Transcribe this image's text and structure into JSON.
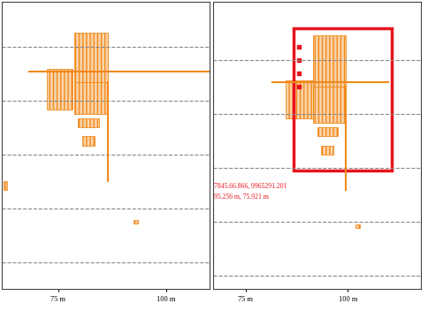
{
  "chart_data": [
    {
      "type": "echogram",
      "xlim": [
        62,
        110
      ],
      "ylim": [
        32,
        0
      ],
      "xticks": [
        {
          "value": 75,
          "label": "75 m"
        },
        {
          "value": 100,
          "label": "100 m"
        }
      ],
      "yticks": [
        5,
        11,
        17,
        23,
        29
      ],
      "grid": true,
      "line_style": "dashed",
      "tick_labels": "x",
      "color": "#f08a1c",
      "echoes": [
        {
          "x": [
            72.4,
            78.3
          ],
          "y": [
            7.5,
            12
          ]
        },
        {
          "x": [
            78.7,
            86.6
          ],
          "y": [
            3.5,
            9
          ]
        },
        {
          "x": [
            78.7,
            86.6
          ],
          "y": [
            9,
            12.5
          ]
        },
        {
          "x": [
            79.5,
            84.5
          ],
          "y": [
            13,
            14
          ]
        },
        {
          "x": [
            80.5,
            83.5
          ],
          "y": [
            15,
            16
          ]
        },
        {
          "x": [
            62.5,
            63.2
          ],
          "y": [
            20,
            21
          ]
        },
        {
          "x": [
            92.5,
            93.5
          ],
          "y": [
            24.3,
            24.7
          ]
        }
      ],
      "lines": [
        {
          "x": [
            68.3,
            110
          ],
          "y": [
            7.8,
            7.8
          ]
        },
        {
          "x": [
            86.6,
            86.6
          ],
          "y": [
            9,
            20
          ]
        }
      ]
    },
    {
      "type": "echogram",
      "xlim": [
        67,
        118
      ],
      "ylim": [
        32,
        0
      ],
      "xticks": [
        {
          "value": 75,
          "label": "75 m"
        },
        {
          "value": 100,
          "label": "100 m"
        }
      ],
      "yticks": [
        6.5,
        12.5,
        18.5,
        24.5,
        30.5
      ],
      "grid": true,
      "line_style": "dashed",
      "tick_labels": "x",
      "color": "#f08a1c",
      "echoes": [
        {
          "x": [
            84.8,
            91.5
          ],
          "y": [
            8.8,
            13
          ]
        },
        {
          "x": [
            91.5,
            99.6
          ],
          "y": [
            3.8,
            9.5
          ]
        },
        {
          "x": [
            91.5,
            99.6
          ],
          "y": [
            9.5,
            13.5
          ]
        },
        {
          "x": [
            92.5,
            97.5
          ],
          "y": [
            14,
            15
          ]
        },
        {
          "x": [
            93.5,
            96.5
          ],
          "y": [
            16,
            17
          ]
        },
        {
          "x": [
            102,
            103
          ],
          "y": [
            24.8,
            25.2
          ]
        }
      ],
      "lines": [
        {
          "x": [
            81.6,
            110
          ],
          "y": [
            9,
            9
          ]
        },
        {
          "x": [
            99.6,
            99.6
          ],
          "y": [
            9.5,
            21
          ]
        }
      ],
      "box": {
        "x": [
          86.7,
          110.7
        ],
        "y": [
          3,
          18.8
        ],
        "color": "#e8141c"
      },
      "markers": {
        "x": [
          88,
          88,
          88,
          88
        ],
        "y": [
          5,
          6.5,
          8,
          9.5
        ],
        "color": "#e8141c"
      },
      "annotations": [
        {
          "text": "7845.66.866, 9965291.201",
          "x": 67.3,
          "y": 20.5,
          "color": "#e8141c"
        },
        {
          "text": "95.256 m, 75.921 m",
          "x": 67.3,
          "y": 21.7,
          "color": "#e8141c"
        }
      ]
    }
  ]
}
